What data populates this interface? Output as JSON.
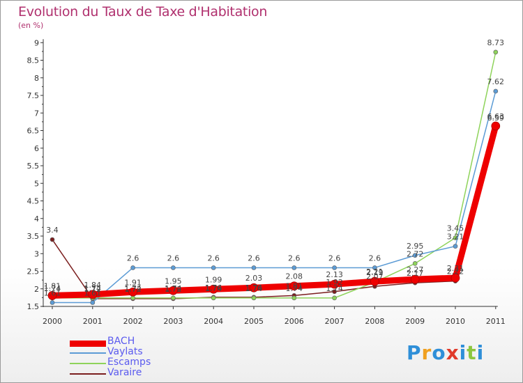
{
  "chart_data": {
    "type": "line",
    "title": "Evolution du Taux de Taxe d'Habitation",
    "subtitle": "(en %)",
    "x": [
      "2000",
      "2001",
      "2002",
      "2003",
      "2004",
      "2005",
      "2006",
      "2007",
      "2008",
      "2009",
      "2010",
      "2011"
    ],
    "ylim": [
      1.5,
      9
    ],
    "yticks": [
      "1.5",
      "2",
      "2.5",
      "3",
      "3.5",
      "4",
      "4.5",
      "5",
      "5.5",
      "6",
      "6.5",
      "7",
      "7.5",
      "8",
      "8.5",
      "9"
    ],
    "grid": false,
    "legend_position": "bottom-left",
    "series": [
      {
        "name": "BACH",
        "color": "#ee0000",
        "values": [
          1.81,
          1.84,
          1.91,
          1.95,
          1.99,
          2.03,
          2.08,
          2.13,
          2.21,
          2.27,
          2.31,
          6.63
        ],
        "labels": [
          "1.81",
          "1.84",
          "1.91",
          "1.95",
          "1.99",
          "2.03",
          "2.08",
          "2.13",
          "2.21",
          "2.27",
          "2.31",
          "6.63"
        ]
      },
      {
        "name": "Vaylats",
        "color": "#5b9bd5",
        "values": [
          1.61,
          1.61,
          2.6,
          2.6,
          2.6,
          2.6,
          2.6,
          2.6,
          2.6,
          2.95,
          3.21,
          7.62
        ],
        "labels": [
          "1.61",
          "1.61",
          "2.6",
          "2.6",
          "2.6",
          "2.6",
          "2.6",
          "2.6",
          "2.6",
          "2.95",
          "3.21",
          "7.62"
        ]
      },
      {
        "name": "Escamps",
        "color": "#8ed35a",
        "values": [
          1.74,
          1.74,
          1.74,
          1.74,
          1.74,
          1.74,
          1.74,
          1.74,
          2.19,
          2.72,
          3.45,
          8.73
        ],
        "labels": [
          "1.74",
          "1.74",
          "1.74",
          "1.74",
          "1.74",
          "1.74",
          "1.74",
          "1.74",
          "2.19",
          "2.72",
          "3.45",
          "8.73"
        ]
      },
      {
        "name": "Varaire",
        "color": "#7b1e1e",
        "values": [
          3.4,
          1.72,
          1.72,
          1.72,
          1.76,
          1.76,
          1.81,
          1.92,
          2.07,
          2.17,
          2.22,
          6.59
        ],
        "labels": [
          "3.4",
          "1.72",
          "1.72",
          "1.72",
          "1.76",
          "1.76",
          "1.81",
          "1.92",
          "2.07",
          "2.17",
          "2.22",
          "6.59"
        ]
      }
    ]
  },
  "legend": {
    "items": [
      "BACH",
      "Vaylats",
      "Escamps",
      "Varaire"
    ]
  },
  "logo": {
    "text": "Proxiti"
  }
}
